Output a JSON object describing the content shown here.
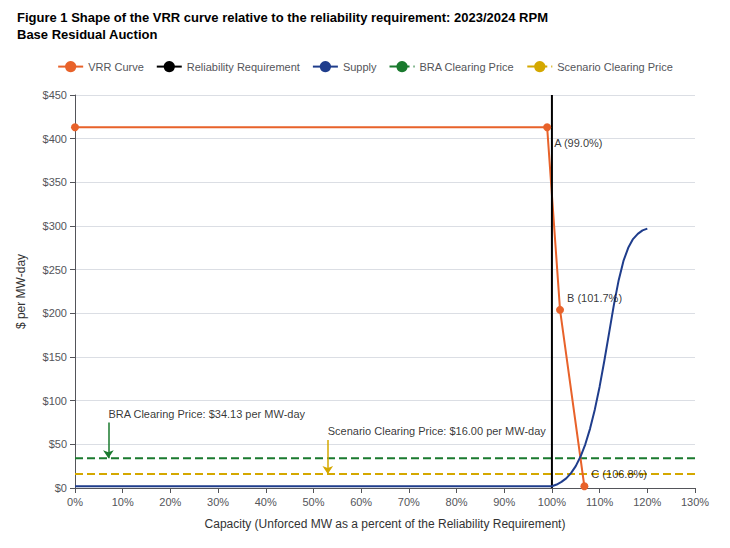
{
  "chart_data": {
    "type": "line",
    "title": "Figure 1 Shape of the VRR curve relative to the reliability requirement: 2023/2024 RPM",
    "subtitle": "Base Residual Auction",
    "x_label": "Capacity (Unforced MW as a percent of the Reliability Requirement)",
    "y_label": "$ per MW-day",
    "xlim": [
      0.0,
      1.3
    ],
    "ylim": [
      0,
      450
    ],
    "xticks": [
      {
        "value": 0.0,
        "label": "0%"
      },
      {
        "value": 0.1,
        "label": "10%"
      },
      {
        "value": 0.2,
        "label": "20%"
      },
      {
        "value": 0.3,
        "label": "30%"
      },
      {
        "value": 0.4,
        "label": "40%"
      },
      {
        "value": 0.5,
        "label": "50%"
      },
      {
        "value": 0.6,
        "label": "60%"
      },
      {
        "value": 0.7,
        "label": "70%"
      },
      {
        "value": 0.8,
        "label": "80%"
      },
      {
        "value": 0.9,
        "label": "90%"
      },
      {
        "value": 1.0,
        "label": "100%"
      },
      {
        "value": 1.1,
        "label": "110%"
      },
      {
        "value": 1.2,
        "label": "120%"
      },
      {
        "value": 1.3,
        "label": "130%"
      }
    ],
    "yticks": [
      {
        "value": 0,
        "label": "$0"
      },
      {
        "value": 50,
        "label": "$50"
      },
      {
        "value": 100,
        "label": "$100"
      },
      {
        "value": 150,
        "label": "$150"
      },
      {
        "value": 200,
        "label": "$200"
      },
      {
        "value": 250,
        "label": "$250"
      },
      {
        "value": 300,
        "label": "$300"
      },
      {
        "value": 350,
        "label": "$350"
      },
      {
        "value": 400,
        "label": "$400"
      },
      {
        "value": 450,
        "label": "$450"
      }
    ],
    "grid": true,
    "legend": "top",
    "series": [
      {
        "name": "VRR Curve",
        "type": "line",
        "color": "#E8622A",
        "marker": "circle",
        "line_style": "solid",
        "x": [
          0.0,
          0.99,
          1.017,
          1.068
        ],
        "values": [
          413.0,
          413.0,
          204.0,
          2.0
        ]
      },
      {
        "name": "Reliability Requirement",
        "type": "line",
        "color": "#000000",
        "line_style": "solid",
        "x": [
          1.0,
          1.0
        ],
        "values": [
          0,
          450
        ]
      },
      {
        "name": "Supply",
        "type": "line",
        "color": "#1F3D8C",
        "line_style": "solid",
        "x": [
          0.0,
          1.0,
          1.0,
          1.01,
          1.02,
          1.03,
          1.04,
          1.05,
          1.06,
          1.07,
          1.08,
          1.09,
          1.1,
          1.11,
          1.12,
          1.13,
          1.14,
          1.15,
          1.16,
          1.17,
          1.18,
          1.19,
          1.2
        ],
        "values": [
          2.0,
          2.0,
          2.0,
          4.0,
          7.0,
          11.0,
          17.0,
          25.0,
          36.0,
          50.0,
          68.0,
          90.0,
          116.0,
          146.0,
          178.0,
          210.0,
          238.0,
          260.0,
          275.0,
          285.0,
          291.0,
          295.0,
          297.0
        ]
      },
      {
        "name": "BRA Clearing Price",
        "type": "hline",
        "color": "#1A7A2E",
        "line_style": "dashed",
        "values": [
          34.13
        ]
      },
      {
        "name": "Scenario Clearing Price",
        "type": "hline",
        "color": "#D4A800",
        "line_style": "dashed",
        "values": [
          16.0
        ]
      }
    ],
    "annotations": [
      {
        "text": "BRA Clearing Price: $34.13 per MW-day",
        "x": 0.07,
        "y": 75,
        "arrow_to": [
          0.07,
          34.13
        ],
        "color": "#1A7A2E"
      },
      {
        "text": "Scenario Clearing Price: $16.00 per MW-day",
        "x": 0.53,
        "y": 55,
        "arrow_to": [
          0.53,
          16.0
        ],
        "color": "#D4A800"
      },
      {
        "text": "A (99.0%)",
        "x": 0.99,
        "y": 413.0
      },
      {
        "text": "B (101.7%)",
        "x": 1.017,
        "y": 204.0
      },
      {
        "text": "C (106.8%)",
        "x": 1.068,
        "y": 2.0
      }
    ]
  }
}
